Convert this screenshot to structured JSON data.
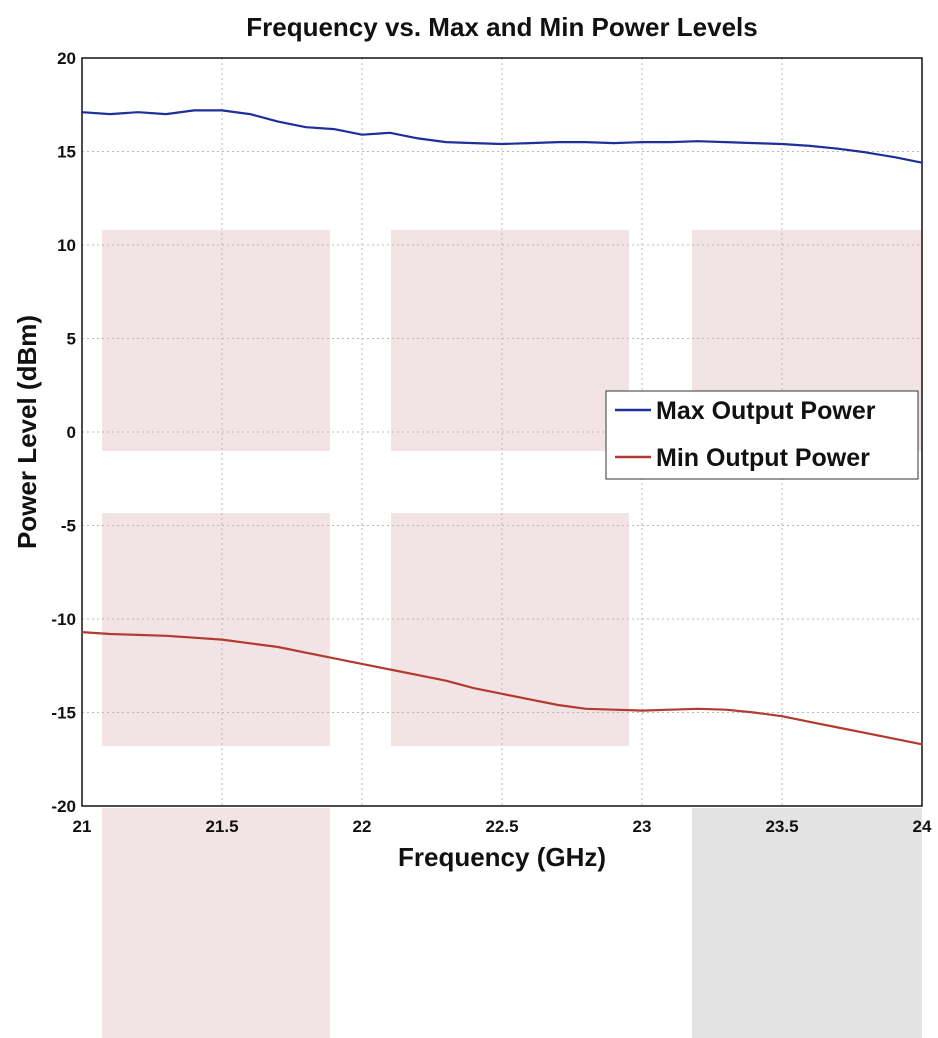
{
  "chart_data": {
    "type": "line",
    "title": "Frequency vs. Max and Min Power Levels",
    "xlabel": "Frequency (GHz)",
    "ylabel": "Power Level (dBm)",
    "xlim": [
      21,
      24
    ],
    "ylim": [
      -20,
      20
    ],
    "x_ticks": [
      21,
      21.5,
      22,
      22.5,
      23,
      23.5,
      24
    ],
    "x_tick_labels": [
      "21",
      "21.5",
      "22",
      "22.5",
      "23",
      "23.5",
      "24"
    ],
    "y_ticks": [
      -20,
      -15,
      -10,
      -5,
      0,
      5,
      10,
      15,
      20
    ],
    "y_tick_labels": [
      "-20",
      "-15",
      "-10",
      "-5",
      "0",
      "5",
      "10",
      "15",
      "20"
    ],
    "grid": true,
    "legend_position": "right",
    "series": [
      {
        "name": "Max Output Power",
        "color": "#1f2f9a",
        "x": [
          21,
          21.1,
          21.2,
          21.3,
          21.4,
          21.5,
          21.6,
          21.7,
          21.8,
          21.9,
          22,
          22.1,
          22.2,
          22.3,
          22.4,
          22.5,
          22.6,
          22.7,
          22.8,
          22.9,
          23,
          23.1,
          23.2,
          23.3,
          23.4,
          23.5,
          23.6,
          23.7,
          23.8,
          23.9,
          24
        ],
        "values": [
          17.1,
          17.0,
          17.1,
          17.0,
          17.2,
          17.2,
          17.0,
          16.6,
          16.3,
          16.2,
          15.9,
          16.0,
          15.7,
          15.5,
          15.45,
          15.4,
          15.45,
          15.5,
          15.5,
          15.45,
          15.5,
          15.5,
          15.55,
          15.5,
          15.45,
          15.4,
          15.3,
          15.15,
          14.95,
          14.7,
          14.4
        ]
      },
      {
        "name": "Min Output Power",
        "color": "#b23a2e",
        "x": [
          21,
          21.1,
          21.2,
          21.3,
          21.4,
          21.5,
          21.6,
          21.7,
          21.8,
          21.9,
          22,
          22.1,
          22.2,
          22.3,
          22.4,
          22.5,
          22.6,
          22.7,
          22.8,
          22.9,
          23,
          23.1,
          23.2,
          23.3,
          23.4,
          23.5,
          23.6,
          23.7,
          23.8,
          23.9,
          24
        ],
        "values": [
          -10.7,
          -10.8,
          -10.85,
          -10.9,
          -11.0,
          -11.1,
          -11.3,
          -11.5,
          -11.8,
          -12.1,
          -12.4,
          -12.7,
          -13.0,
          -13.3,
          -13.7,
          -14.0,
          -14.3,
          -14.6,
          -14.8,
          -14.85,
          -14.9,
          -14.85,
          -14.8,
          -14.85,
          -15.0,
          -15.2,
          -15.5,
          -15.8,
          -16.1,
          -16.4,
          -16.7
        ]
      }
    ]
  }
}
